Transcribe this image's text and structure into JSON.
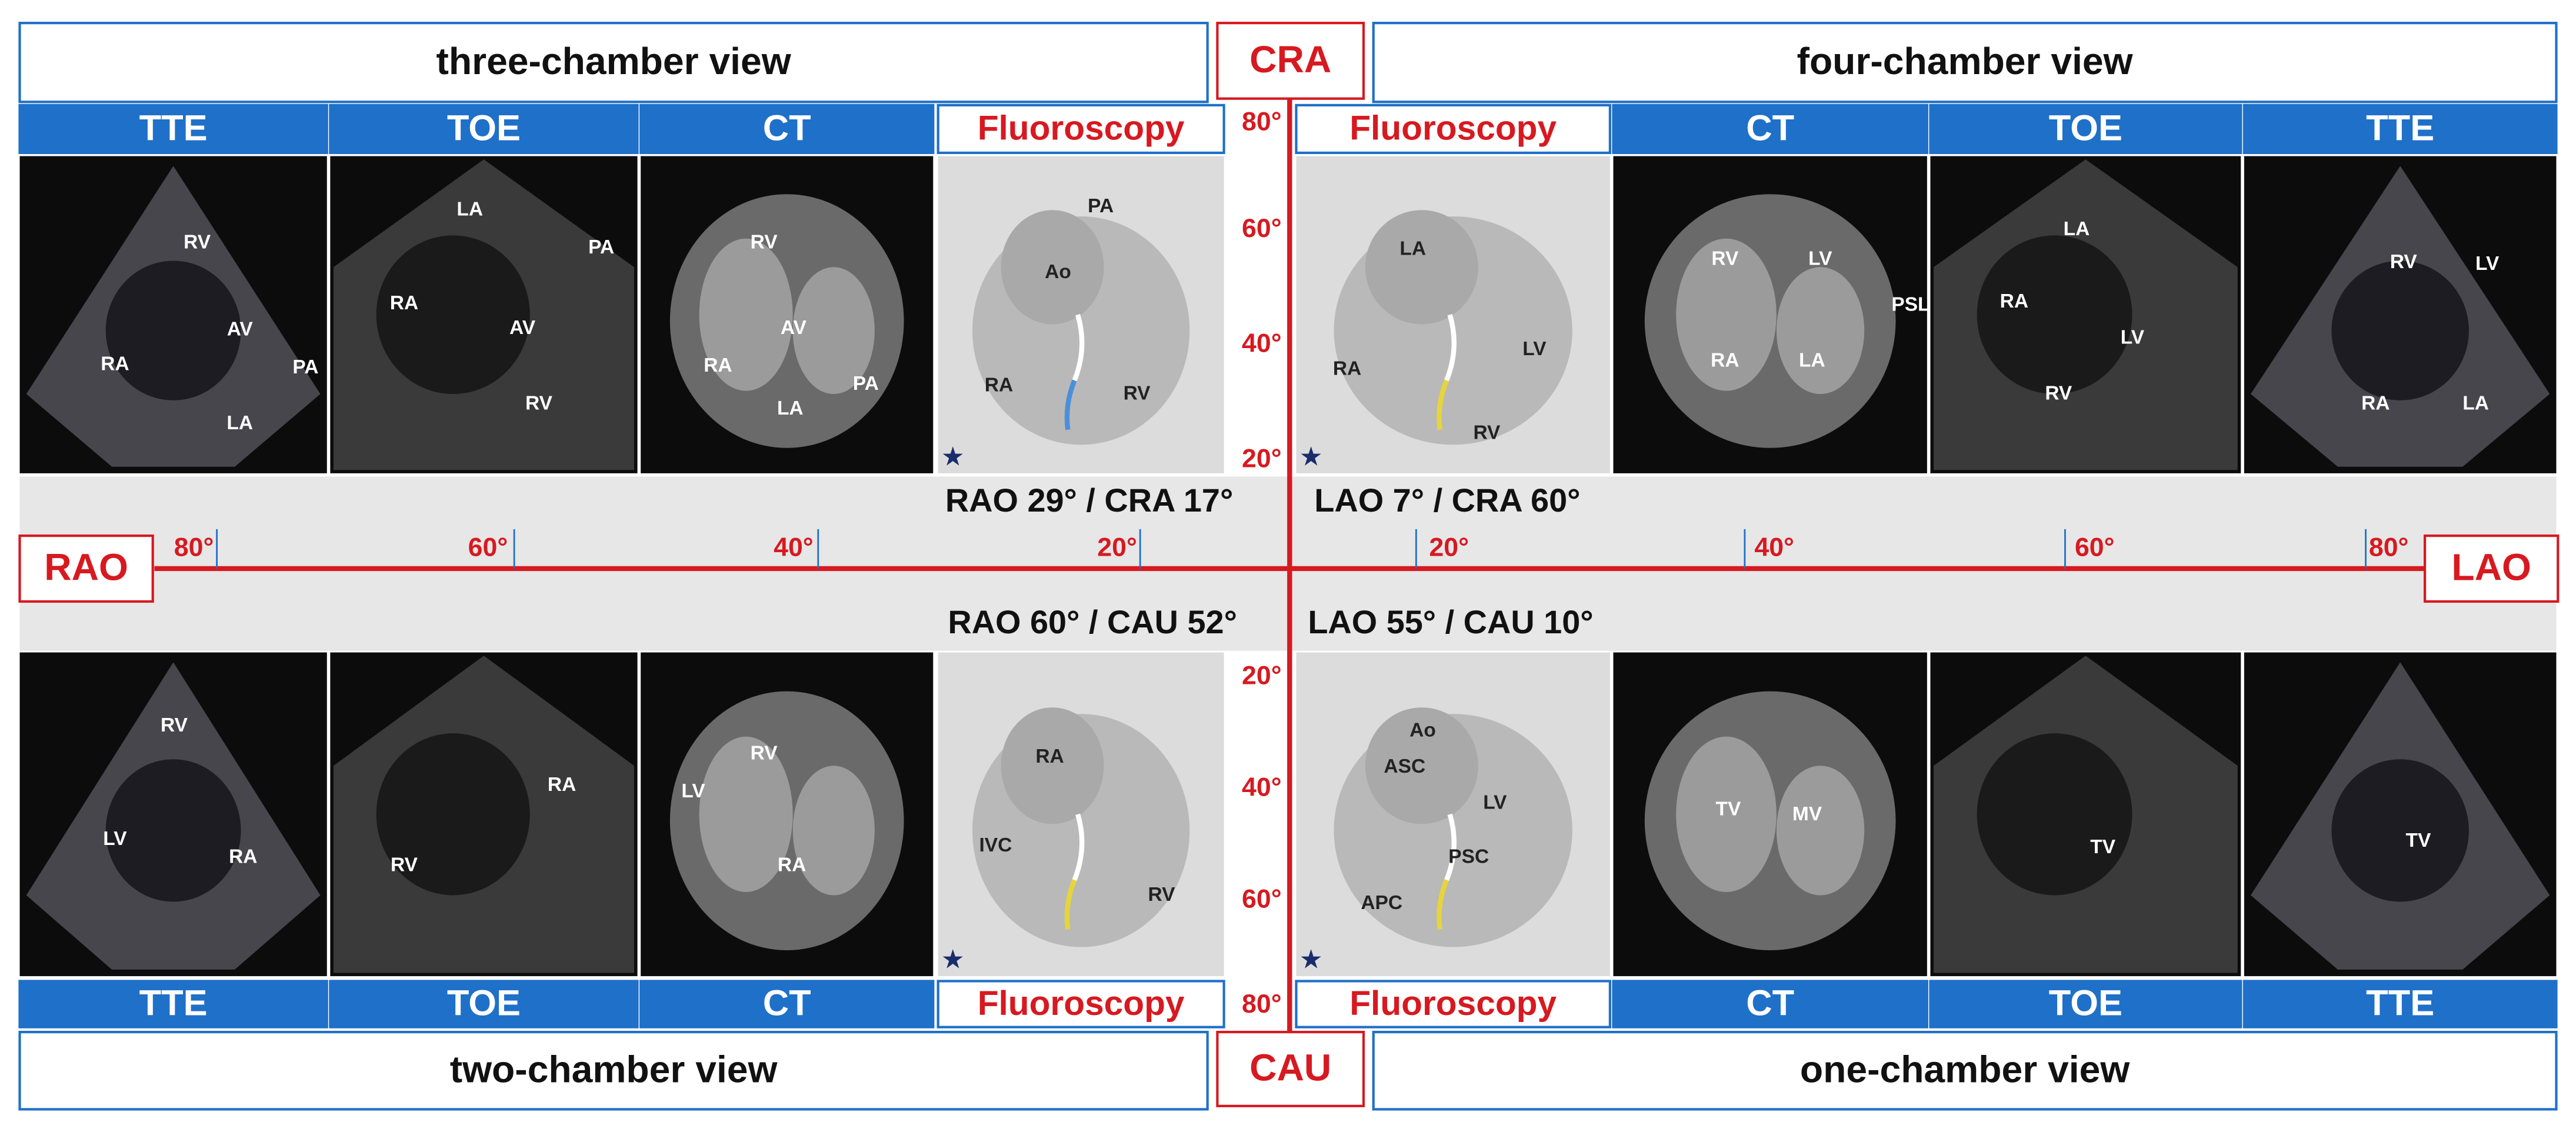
{
  "axes": {
    "top": "CRA",
    "bottom": "CAU",
    "left": "RAO",
    "right": "LAO"
  },
  "horizontal_ticks": {
    "left": [
      "80°",
      "60°",
      "40°",
      "20°"
    ],
    "right": [
      "20°",
      "40°",
      "60°",
      "80°"
    ]
  },
  "vertical_ticks": {
    "top": [
      "80°",
      "60°",
      "40°",
      "20°"
    ],
    "bottom": [
      "20°",
      "40°",
      "60°",
      "80°"
    ]
  },
  "quadrants": [
    {
      "view": "three-chamber view",
      "projection": "RAO 29° / CRA 17°",
      "modalities": [
        "TTE",
        "TOE",
        "CT",
        "Fluoroscopy"
      ],
      "panel_labels": [
        [
          "RV",
          "RA",
          "AV",
          "PA",
          "LA"
        ],
        [
          "LA",
          "RA",
          "AV",
          "PA",
          "RV"
        ],
        [
          "RV",
          "RA",
          "AV",
          "PA",
          "LA"
        ],
        [
          "PA",
          "Ao",
          "RA",
          "RV"
        ]
      ]
    },
    {
      "view": "four-chamber view",
      "projection": "LAO 7° / CRA 60°",
      "modalities": [
        "Fluoroscopy",
        "CT",
        "TOE",
        "TTE"
      ],
      "panel_labels": [
        [
          "LA",
          "RA",
          "LV",
          "RV"
        ],
        [
          "RV",
          "LV",
          "RA",
          "LA",
          "PSL"
        ],
        [
          "LA",
          "RA",
          "LV",
          "RV"
        ],
        [
          "RV",
          "LV",
          "RA",
          "LA"
        ]
      ]
    },
    {
      "view": "two-chamber view",
      "projection": "RAO 60° / CAU 52°",
      "modalities": [
        "TTE",
        "TOE",
        "CT",
        "Fluoroscopy"
      ],
      "panel_labels": [
        [
          "RV",
          "LV",
          "RA"
        ],
        [
          "RA",
          "RV"
        ],
        [
          "RV",
          "LV",
          "RA"
        ],
        [
          "RA",
          "IVC",
          "RV"
        ]
      ]
    },
    {
      "view": "one-chamber view",
      "projection": "LAO 55° / CAU 10°",
      "modalities": [
        "Fluoroscopy",
        "CT",
        "TOE",
        "TTE"
      ],
      "panel_labels": [
        [
          "Ao",
          "ASC",
          "LV",
          "APC",
          "PSC"
        ],
        [
          "TV",
          "MV"
        ],
        [
          "TV"
        ],
        [
          "TV"
        ]
      ]
    }
  ]
}
